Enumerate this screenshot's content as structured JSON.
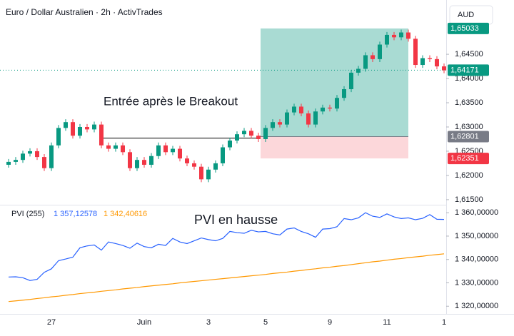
{
  "chart_data": [
    {
      "type": "candlestick",
      "title": "Euro / Dollar Australien · 2h · ActivTrades",
      "currency": "AUD",
      "annotation": "Entrée après le Breakout",
      "categories": [
        null,
        null,
        null,
        null,
        null,
        null,
        "27",
        null,
        null,
        null,
        null,
        null,
        null,
        null,
        null,
        null,
        null,
        null,
        null,
        "Juin",
        null,
        null,
        null,
        null,
        null,
        null,
        null,
        null,
        "3",
        null,
        null,
        null,
        null,
        null,
        null,
        null,
        "5",
        null,
        null,
        null,
        null,
        null,
        null,
        null,
        null,
        "9",
        null,
        null,
        null,
        null,
        null,
        null,
        null,
        "11",
        null,
        null,
        null,
        null,
        null,
        null,
        null,
        "1"
      ],
      "open": [
        1.6222,
        1.6228,
        1.6232,
        1.6245,
        1.625,
        1.6238,
        1.6215,
        1.6262,
        1.6298,
        1.631,
        1.6282,
        1.63,
        1.6295,
        1.6305,
        1.6262,
        1.6255,
        1.6262,
        1.6248,
        1.6215,
        1.6232,
        1.6222,
        1.624,
        1.6262,
        1.6248,
        1.6255,
        1.6235,
        1.6225,
        1.6218,
        1.6192,
        1.6212,
        1.6225,
        1.6258,
        1.6272,
        1.6285,
        1.6292,
        1.6282,
        1.6275,
        1.6298,
        1.631,
        1.6305,
        1.633,
        1.6342,
        1.6328,
        1.6305,
        1.6332,
        1.634,
        1.6338,
        1.636,
        1.6378,
        1.6412,
        1.642,
        1.6448,
        1.644,
        1.647,
        1.649,
        1.6485,
        1.6495,
        1.6482,
        1.6428,
        1.6442,
        1.644,
        1.6425
      ],
      "high": [
        1.6234,
        1.6238,
        1.6251,
        1.6256,
        1.6256,
        1.6244,
        1.6268,
        1.6304,
        1.6316,
        1.6316,
        1.6306,
        1.6306,
        1.6311,
        1.6311,
        1.6268,
        1.6268,
        1.6268,
        1.6254,
        1.6238,
        1.6238,
        1.6246,
        1.6268,
        1.6268,
        1.6261,
        1.6261,
        1.6241,
        1.6231,
        1.6224,
        1.6218,
        1.6231,
        1.6264,
        1.6278,
        1.6291,
        1.6298,
        1.6298,
        1.6288,
        1.6304,
        1.6316,
        1.6316,
        1.6336,
        1.6348,
        1.6348,
        1.6334,
        1.6338,
        1.6346,
        1.6346,
        1.6366,
        1.6384,
        1.6418,
        1.6426,
        1.6454,
        1.6454,
        1.6476,
        1.6496,
        1.6496,
        1.6501,
        1.6501,
        1.6488,
        1.6448,
        1.6448,
        1.6446,
        1.6431
      ],
      "low": [
        1.6216,
        1.6222,
        1.6226,
        1.6239,
        1.6232,
        1.6209,
        1.6209,
        1.6256,
        1.6292,
        1.6276,
        1.6276,
        1.6289,
        1.6289,
        1.6256,
        1.6249,
        1.6249,
        1.6242,
        1.6209,
        1.6209,
        1.6216,
        1.6216,
        1.6234,
        1.6242,
        1.6242,
        1.6229,
        1.6219,
        1.6212,
        1.6186,
        1.6186,
        1.6206,
        1.6219,
        1.6252,
        1.6266,
        1.6279,
        1.6276,
        1.6269,
        1.6269,
        1.6292,
        1.6299,
        1.6299,
        1.6324,
        1.6322,
        1.6299,
        1.6299,
        1.6326,
        1.6332,
        1.6332,
        1.6354,
        1.6372,
        1.6406,
        1.6414,
        1.6434,
        1.6434,
        1.6464,
        1.6479,
        1.6479,
        1.6476,
        1.6422,
        1.6422,
        1.6434,
        1.6419,
        1.6411
      ],
      "close": [
        1.6228,
        1.6232,
        1.6245,
        1.625,
        1.6238,
        1.6215,
        1.6262,
        1.6298,
        1.631,
        1.6282,
        1.63,
        1.6295,
        1.6305,
        1.6262,
        1.6255,
        1.6262,
        1.6248,
        1.6215,
        1.6232,
        1.6222,
        1.624,
        1.6262,
        1.6248,
        1.6255,
        1.6235,
        1.6225,
        1.6218,
        1.6192,
        1.6212,
        1.6225,
        1.6258,
        1.6272,
        1.6285,
        1.6292,
        1.6282,
        1.6275,
        1.6298,
        1.631,
        1.6305,
        1.633,
        1.6342,
        1.6328,
        1.6305,
        1.6332,
        1.634,
        1.6338,
        1.636,
        1.6378,
        1.6412,
        1.642,
        1.6448,
        1.644,
        1.647,
        1.649,
        1.6485,
        1.6495,
        1.6482,
        1.6428,
        1.6442,
        1.644,
        1.6425,
        1.6417
      ],
      "up_color": "#089981",
      "down_color": "#f23645",
      "ylim": [
        1.6141,
        1.6562
      ],
      "yticks": [
        {
          "value": 1.615,
          "label": "1,61500"
        },
        {
          "value": 1.62,
          "label": "1,62000"
        },
        {
          "value": 1.625,
          "label": "1,62500"
        },
        {
          "value": 1.63,
          "label": "1,63000"
        },
        {
          "value": 1.635,
          "label": "1,63500"
        },
        {
          "value": 1.64,
          "label": "1,64000"
        },
        {
          "value": 1.645,
          "label": "1,64500"
        }
      ],
      "breakout_level": 1.6277,
      "position": {
        "target": {
          "value": 1.65033,
          "label": "1,65033"
        },
        "entry": {
          "value": 1.62801,
          "label": "1,62801"
        },
        "stop": {
          "value": 1.62351,
          "label": "1,62351"
        },
        "target_color": "#089981",
        "entry_color": "#787b86",
        "stop_color": "#f23645"
      },
      "last_price": {
        "value": 1.64171,
        "label": "1,64171"
      }
    },
    {
      "type": "line",
      "title": "PVI (255)",
      "annotation": "PVI en hausse",
      "series": [
        {
          "color": "#2962ff",
          "last_value_label": "1 357,12578",
          "values": [
            1332.5,
            1332.6,
            1332.2,
            1331.0,
            1331.5,
            1334.5,
            1336.0,
            1339.5,
            1340.2,
            1341.0,
            1345.0,
            1345.8,
            1346.2,
            1344.0,
            1347.5,
            1346.8,
            1346.0,
            1344.8,
            1347.0,
            1345.5,
            1345.0,
            1346.5,
            1346.0,
            1349.0,
            1347.5,
            1346.8,
            1348.0,
            1349.2,
            1348.5,
            1348.0,
            1349.0,
            1352.0,
            1351.5,
            1351.2,
            1352.5,
            1351.8,
            1352.0,
            1351.0,
            1350.5,
            1353.0,
            1353.5,
            1352.0,
            1351.0,
            1349.5,
            1353.0,
            1353.2,
            1354.0,
            1357.5,
            1357.0,
            1357.8,
            1360.0,
            1358.5,
            1358.0,
            1359.5,
            1358.2,
            1357.5,
            1357.8,
            1357.0,
            1357.6,
            1359.2,
            1357.2,
            1357.12578
          ]
        },
        {
          "color": "#ff9800",
          "last_value_label": "1 342,40616",
          "values": [
            1322.0,
            1322.3,
            1322.6,
            1322.9,
            1323.3,
            1323.6,
            1324.0,
            1324.3,
            1324.7,
            1325.0,
            1325.4,
            1325.7,
            1326.0,
            1326.4,
            1326.7,
            1327.0,
            1327.4,
            1327.7,
            1328.0,
            1328.4,
            1328.7,
            1329.0,
            1329.3,
            1329.6,
            1330.0,
            1330.3,
            1330.6,
            1330.9,
            1331.2,
            1331.5,
            1331.8,
            1332.1,
            1332.4,
            1332.7,
            1333.0,
            1333.3,
            1333.6,
            1334.0,
            1334.3,
            1334.6,
            1335.0,
            1335.3,
            1335.7,
            1336.0,
            1336.4,
            1336.7,
            1337.1,
            1337.4,
            1337.8,
            1338.2,
            1338.6,
            1339.0,
            1339.3,
            1339.7,
            1340.1,
            1340.4,
            1340.8,
            1341.1,
            1341.4,
            1341.8,
            1342.1,
            1342.40616
          ]
        }
      ],
      "ylim": [
        1315.5,
        1362.5
      ],
      "yticks": [
        {
          "value": 1320,
          "label": "1 320,00000"
        },
        {
          "value": 1330,
          "label": "1 330,00000"
        },
        {
          "value": 1340,
          "label": "1 340,00000"
        },
        {
          "value": 1350,
          "label": "1 350,00000"
        },
        {
          "value": 1360,
          "label": "1 360,00000"
        }
      ]
    }
  ]
}
